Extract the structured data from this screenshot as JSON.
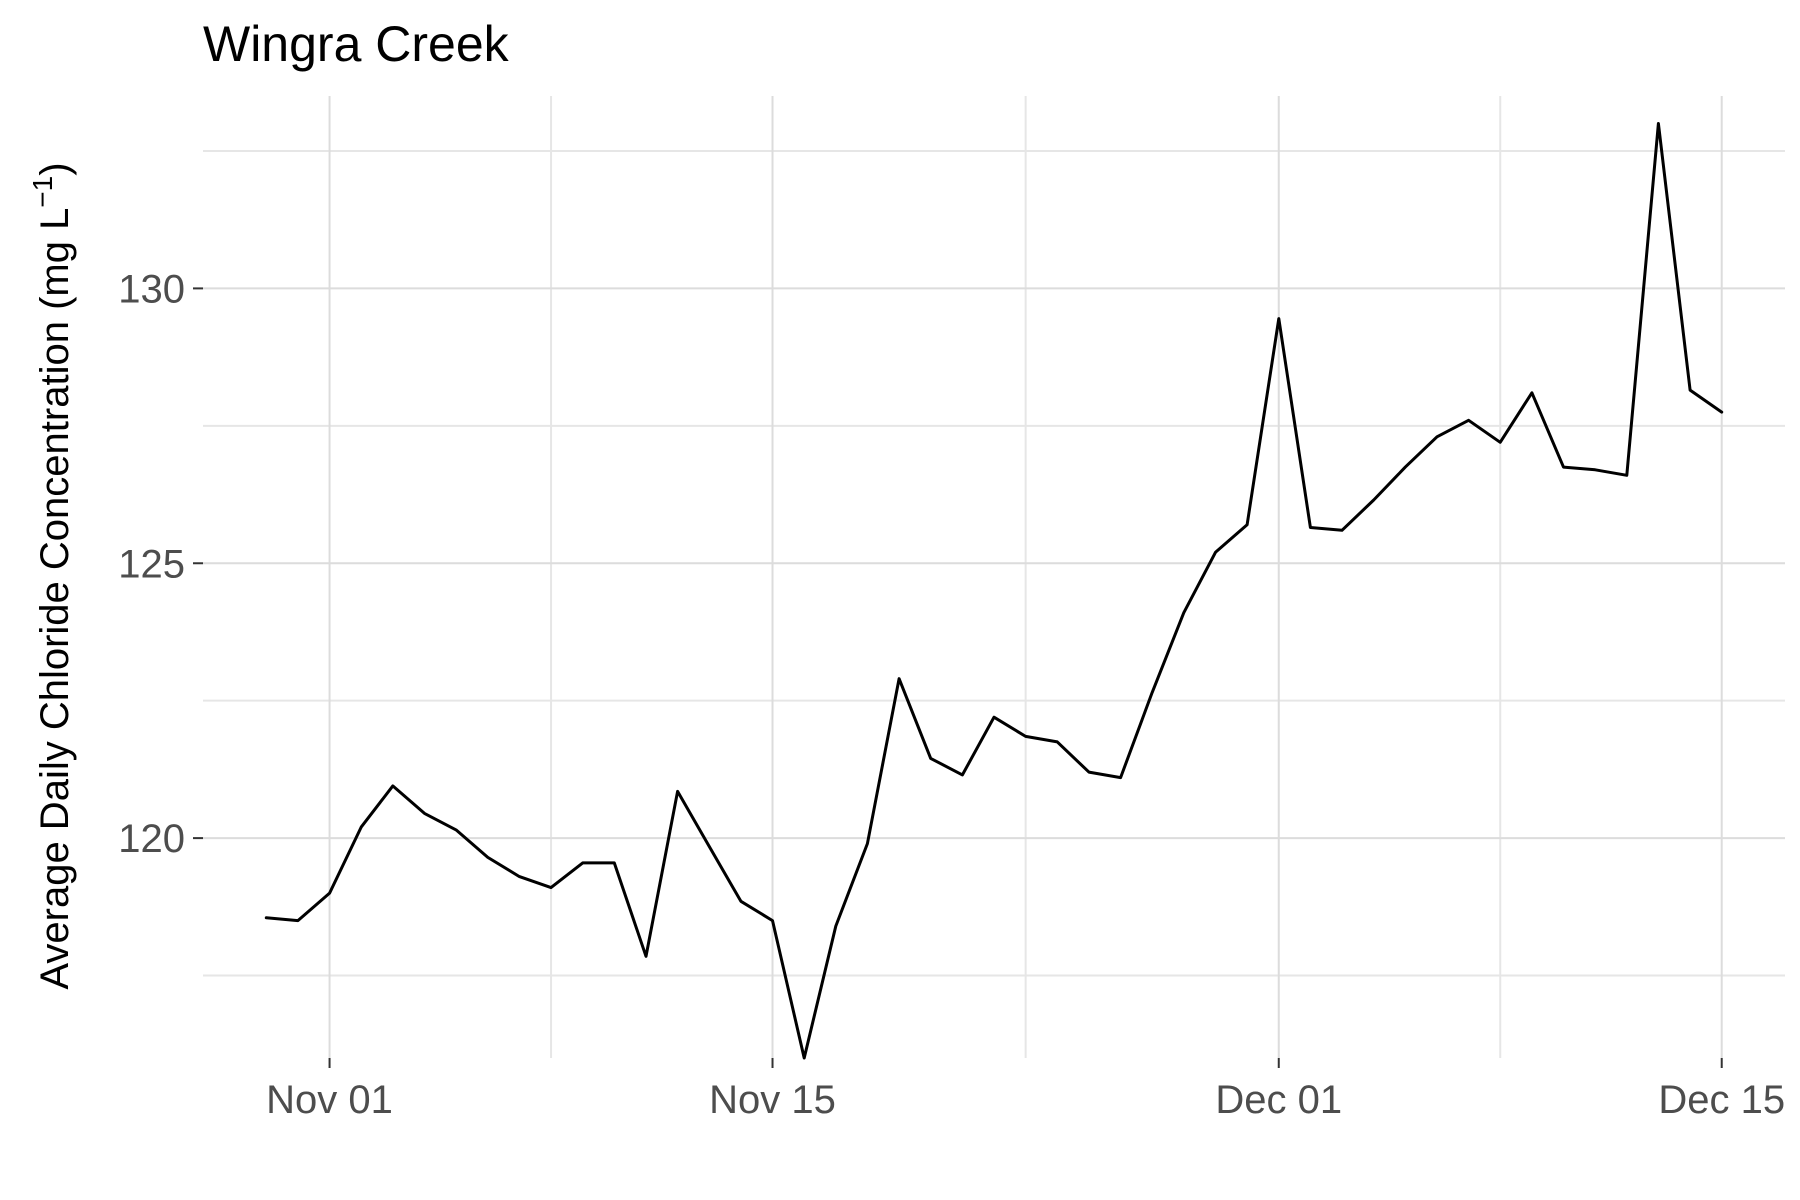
{
  "chart_data": {
    "type": "line",
    "title": "Wingra Creek",
    "xlabel": "",
    "ylabel": "Average Daily Chloride Concentration (mg L",
    "ylabel_superscript": "−1",
    "ylabel_close": ")",
    "x_ticks": [
      {
        "date": "2023-11-01",
        "label": "Nov 01"
      },
      {
        "date": "2023-11-15",
        "label": "Nov 15"
      },
      {
        "date": "2023-12-01",
        "label": "Dec 01"
      },
      {
        "date": "2023-12-15",
        "label": "Dec 15"
      }
    ],
    "x_minor_ticks": [
      "2023-11-08",
      "2023-11-23",
      "2023-12-08"
    ],
    "xlim": [
      "2023-10-28",
      "2023-12-17"
    ],
    "y_ticks": [
      120,
      125,
      130
    ],
    "y_minor_ticks": [
      117.5,
      122.5,
      127.5,
      132.5
    ],
    "ylim": [
      116,
      133.5
    ],
    "grid": true,
    "legend": "none",
    "line_color": "#000000",
    "series": [
      {
        "x": [
          "2023-10-30",
          "2023-10-31",
          "2023-11-01",
          "2023-11-02",
          "2023-11-03",
          "2023-11-04",
          "2023-11-05",
          "2023-11-06",
          "2023-11-07",
          "2023-11-08",
          "2023-11-09",
          "2023-11-10",
          "2023-11-11",
          "2023-11-12",
          "2023-11-13",
          "2023-11-14",
          "2023-11-15",
          "2023-11-16",
          "2023-11-17",
          "2023-11-18",
          "2023-11-19",
          "2023-11-20",
          "2023-11-21",
          "2023-11-22",
          "2023-11-23",
          "2023-11-24",
          "2023-11-25",
          "2023-11-26",
          "2023-11-27",
          "2023-11-28",
          "2023-11-29",
          "2023-11-30",
          "2023-12-01",
          "2023-12-02",
          "2023-12-03",
          "2023-12-04",
          "2023-12-05",
          "2023-12-06",
          "2023-12-07",
          "2023-12-08",
          "2023-12-09",
          "2023-12-10",
          "2023-12-11",
          "2023-12-12",
          "2023-12-13",
          "2023-12-14",
          "2023-12-15"
        ],
        "values": [
          118.55,
          118.5,
          119.0,
          120.2,
          120.95,
          120.45,
          120.15,
          119.65,
          119.3,
          119.1,
          119.55,
          119.55,
          117.85,
          120.85,
          119.85,
          118.85,
          118.5,
          116.0,
          118.4,
          119.9,
          122.9,
          121.45,
          121.15,
          122.2,
          121.85,
          121.75,
          121.2,
          121.1,
          122.65,
          124.1,
          125.2,
          125.7,
          129.45,
          125.65,
          125.6,
          126.15,
          126.75,
          127.3,
          127.6,
          127.2,
          128.1,
          126.75,
          126.7,
          126.6,
          133.0,
          128.15,
          127.75
        ]
      }
    ]
  }
}
